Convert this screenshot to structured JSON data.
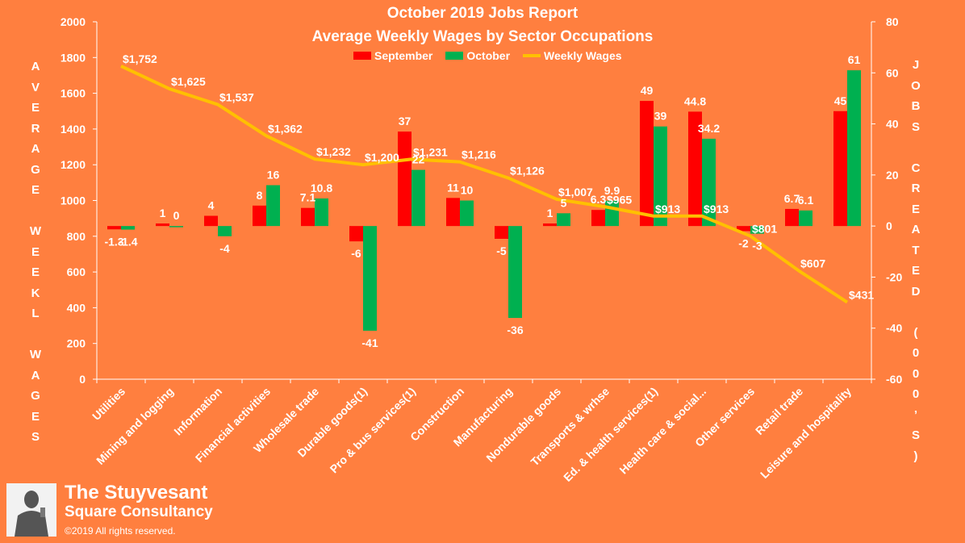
{
  "header": {
    "title": "October 2019 Jobs Report",
    "subtitle": "Average Weekly Wages by Sector Occupations"
  },
  "axes": {
    "left_label_letters": [
      "A",
      "V",
      "E",
      "R",
      "A",
      "G",
      "E",
      "",
      "W",
      "E",
      "E",
      "K",
      "L",
      "",
      "W",
      "A",
      "G",
      "E",
      "S"
    ],
    "right_label_letters": [
      "J",
      "O",
      "B",
      "S",
      "",
      "C",
      "R",
      "E",
      "A",
      "T",
      "E",
      "D",
      "",
      "(",
      "0",
      "0",
      "0",
      "’",
      "S",
      ")"
    ]
  },
  "brand": {
    "name_line1": "The Stuyvesant",
    "name_line2": "Square  Consultancy",
    "copyright": "©2019 All rights reserved.",
    "logo_icon": "statue-portrait-icon"
  },
  "colors": {
    "background": "#FF7F3F",
    "september": "#FF0000",
    "october": "#00B050",
    "wages": "#FFC000",
    "text": "#FFFFFF"
  },
  "chart_data": {
    "type": "bar",
    "categories": [
      "Utilities",
      "Mining and logging",
      "Information",
      "Financial activities",
      "Wholesale trade",
      "Durable goods(1)",
      "Pro & bus services(1)",
      "Construction",
      "Manufacturing",
      "Nondurable goods",
      "Transports & wrhse",
      "Ed. & health services(1)",
      "Health care & social...",
      "Other services",
      "Retail trade",
      "Leisure and hospitality"
    ],
    "series": [
      {
        "name": "September",
        "axis": "right",
        "values": [
          -1.3,
          1,
          4,
          8,
          7.1,
          -6,
          37,
          11,
          -5,
          1,
          6.3,
          49,
          44.8,
          -2,
          6.7,
          45
        ],
        "labels": [
          "-1.3",
          "1",
          "4",
          "8",
          "7.1",
          "-6",
          "37",
          "11",
          "-5",
          "1",
          "6.3",
          "49",
          "44.8",
          "-2",
          "6.7",
          "45"
        ]
      },
      {
        "name": "October",
        "axis": "right",
        "values": [
          -1.4,
          0,
          -4,
          16,
          10.8,
          -41,
          22,
          10,
          -36,
          5,
          9.9,
          39,
          34.2,
          -3,
          6.1,
          61
        ],
        "labels": [
          "-1.4",
          "0",
          "-4",
          "16",
          "10.8",
          "-41",
          "22",
          "10",
          "-36",
          "5",
          "9.9",
          "39",
          "34.2",
          "-3",
          "6.1",
          "61"
        ]
      },
      {
        "name": "Weekly Wages",
        "type": "line",
        "axis": "left",
        "values": [
          1752,
          1625,
          1537,
          1362,
          1232,
          1200,
          1231,
          1216,
          1126,
          1007,
          965,
          913,
          913,
          801,
          607,
          431
        ],
        "labels": [
          "$1,752",
          "$1,625",
          "$1,537",
          "$1,362",
          "$1,232",
          "$1,200",
          "$1,231",
          "$1,216",
          "$1,126",
          "$1,007",
          "$965",
          "$913",
          "$913",
          "$801",
          "$607",
          "$431"
        ]
      }
    ],
    "ylim_left": [
      0,
      2000
    ],
    "yticks_left": [
      "0",
      "200",
      "400",
      "600",
      "800",
      "1000",
      "1200",
      "1400",
      "1600",
      "1800",
      "2000"
    ],
    "ylim_right": [
      -60,
      80
    ],
    "yticks_right": [
      "-60",
      "-40",
      "-20",
      "0",
      "20",
      "40",
      "60",
      "80"
    ],
    "legend": "top-center",
    "grid": false
  }
}
